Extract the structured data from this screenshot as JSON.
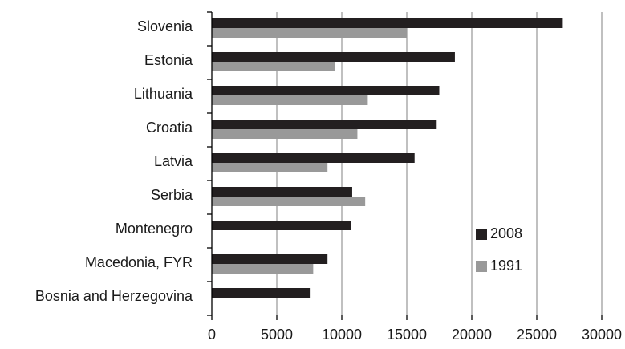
{
  "chart_data": {
    "type": "bar",
    "orientation": "horizontal",
    "categories": [
      "Slovenia",
      "Estonia",
      "Lithuania",
      "Croatia",
      "Latvia",
      "Serbia",
      "Montenegro",
      "Macedonia, FYR",
      "Bosnia and Herzegovina"
    ],
    "series": [
      {
        "name": "2008",
        "color": "#231f20",
        "values": [
          27000,
          18700,
          17500,
          17300,
          15600,
          10800,
          10700,
          8900,
          7600
        ]
      },
      {
        "name": "1991",
        "color": "#999999",
        "values": [
          15000,
          9500,
          12000,
          11200,
          8900,
          11800,
          null,
          7800,
          null
        ]
      }
    ],
    "xlim": [
      0,
      30000
    ],
    "xticks": [
      "0",
      "5000",
      "10000",
      "15000",
      "20000",
      "25000",
      "30000"
    ],
    "grid": true,
    "legend_position": "right-lower"
  }
}
